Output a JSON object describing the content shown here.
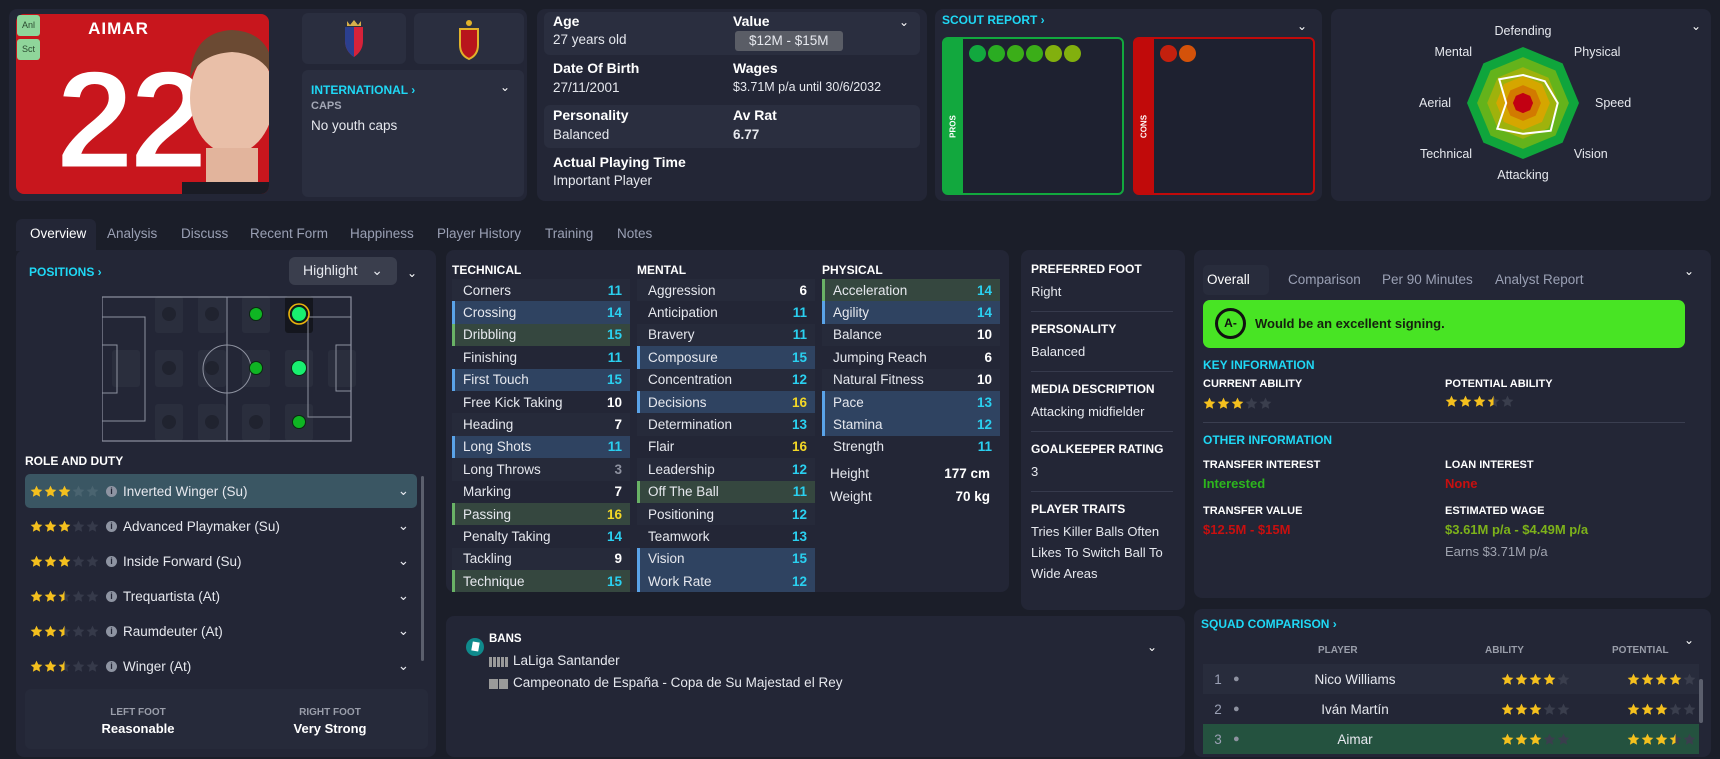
{
  "player": {
    "name": "AIMAR",
    "number": "22",
    "badges": [
      "Anl",
      "Sct"
    ],
    "shirt_color": "#c8161d"
  },
  "international": {
    "title": "INTERNATIONAL",
    "caps_label": "CAPS",
    "caps_value": "No youth caps"
  },
  "info": {
    "age_label": "Age",
    "age": "27 years old",
    "value_label": "Value",
    "value": "$12M - $15M",
    "dob_label": "Date Of Birth",
    "dob": "27/11/2001",
    "wages_label": "Wages",
    "wages": "$3.71M p/a until 30/6/2032",
    "personality_label": "Personality",
    "personality": "Balanced",
    "avrat_label": "Av Rat",
    "avrat": "6.77",
    "playing_time_label": "Actual Playing Time",
    "playing_time": "Important Player"
  },
  "scout": {
    "title": "SCOUT REPORT",
    "pros_label": "PROS",
    "cons_label": "CONS",
    "pros_icons": [
      "flask-icon",
      "target-icon",
      "tactics-icon",
      "handshake-icon",
      "brain-icon",
      "chain-icon"
    ],
    "cons_icons": [
      "mask-icon",
      "flag-icon"
    ],
    "pros_color": "#12a83e",
    "cons_color": "#c10a0a"
  },
  "radar": {
    "axes": [
      "Defending",
      "Physical",
      "Speed",
      "Vision",
      "Attacking",
      "Technical",
      "Aerial",
      "Mental"
    ],
    "player_values": [
      0.5,
      0.55,
      0.62,
      0.7,
      0.55,
      0.65,
      0.3,
      0.6
    ],
    "ring_colors": [
      "#0fa53c",
      "#64b31b",
      "#9fb20c",
      "#d5a600",
      "#d27a00",
      "#c20012"
    ]
  },
  "tabs": [
    "Overview",
    "Analysis",
    "Discuss",
    "Recent Form",
    "Happiness",
    "Player History",
    "Training",
    "Notes"
  ],
  "positions": {
    "title": "POSITIONS",
    "highlight": "Highlight",
    "role_title": "ROLE AND DUTY",
    "roles": [
      {
        "name": "Inverted Winger (Su)",
        "stars": 3
      },
      {
        "name": "Advanced Playmaker (Su)",
        "stars": 3
      },
      {
        "name": "Inside Forward (Su)",
        "stars": 3
      },
      {
        "name": "Trequartista (At)",
        "stars": 2.5
      },
      {
        "name": "Raumdeuter (At)",
        "stars": 2.5
      },
      {
        "name": "Winger (At)",
        "stars": 2.5
      }
    ],
    "left_foot_label": "LEFT FOOT",
    "left_foot": "Reasonable",
    "right_foot_label": "RIGHT FOOT",
    "right_foot": "Very Strong"
  },
  "attributes": {
    "technical": {
      "title": "TECHNICAL",
      "rows": [
        {
          "name": "Corners",
          "v": 11,
          "h": ""
        },
        {
          "name": "Crossing",
          "v": 14,
          "h": "b"
        },
        {
          "name": "Dribbling",
          "v": 15,
          "h": "g"
        },
        {
          "name": "Finishing",
          "v": 11,
          "h": ""
        },
        {
          "name": "First Touch",
          "v": 15,
          "h": "b"
        },
        {
          "name": "Free Kick Taking",
          "v": 10,
          "h": ""
        },
        {
          "name": "Heading",
          "v": 7,
          "h": ""
        },
        {
          "name": "Long Shots",
          "v": 11,
          "h": "b"
        },
        {
          "name": "Long Throws",
          "v": 3,
          "h": ""
        },
        {
          "name": "Marking",
          "v": 7,
          "h": ""
        },
        {
          "name": "Passing",
          "v": 16,
          "h": "g"
        },
        {
          "name": "Penalty Taking",
          "v": 14,
          "h": ""
        },
        {
          "name": "Tackling",
          "v": 9,
          "h": ""
        },
        {
          "name": "Technique",
          "v": 15,
          "h": "g"
        }
      ]
    },
    "mental": {
      "title": "MENTAL",
      "rows": [
        {
          "name": "Aggression",
          "v": 6,
          "h": ""
        },
        {
          "name": "Anticipation",
          "v": 11,
          "h": ""
        },
        {
          "name": "Bravery",
          "v": 11,
          "h": ""
        },
        {
          "name": "Composure",
          "v": 15,
          "h": "b"
        },
        {
          "name": "Concentration",
          "v": 12,
          "h": ""
        },
        {
          "name": "Decisions",
          "v": 16,
          "h": "b"
        },
        {
          "name": "Determination",
          "v": 13,
          "h": ""
        },
        {
          "name": "Flair",
          "v": 16,
          "h": ""
        },
        {
          "name": "Leadership",
          "v": 12,
          "h": ""
        },
        {
          "name": "Off The Ball",
          "v": 11,
          "h": "g"
        },
        {
          "name": "Positioning",
          "v": 12,
          "h": ""
        },
        {
          "name": "Teamwork",
          "v": 13,
          "h": ""
        },
        {
          "name": "Vision",
          "v": 15,
          "h": "b"
        },
        {
          "name": "Work Rate",
          "v": 12,
          "h": "b"
        }
      ]
    },
    "physical": {
      "title": "PHYSICAL",
      "rows": [
        {
          "name": "Acceleration",
          "v": 14,
          "h": "g"
        },
        {
          "name": "Agility",
          "v": 14,
          "h": "b"
        },
        {
          "name": "Balance",
          "v": 10,
          "h": ""
        },
        {
          "name": "Jumping Reach",
          "v": 6,
          "h": ""
        },
        {
          "name": "Natural Fitness",
          "v": 10,
          "h": ""
        },
        {
          "name": "Pace",
          "v": 13,
          "h": "b"
        },
        {
          "name": "Stamina",
          "v": 12,
          "h": "b"
        },
        {
          "name": "Strength",
          "v": 11,
          "h": ""
        }
      ]
    },
    "height_label": "Height",
    "height": "177 cm",
    "weight_label": "Weight",
    "weight": "70 kg"
  },
  "details": [
    {
      "h": "PREFERRED FOOT",
      "v": [
        "Right"
      ]
    },
    {
      "h": "PERSONALITY",
      "v": [
        "Balanced"
      ]
    },
    {
      "h": "MEDIA DESCRIPTION",
      "v": [
        "Attacking midfielder"
      ]
    },
    {
      "h": "GOALKEEPER RATING",
      "v": [
        "3"
      ]
    },
    {
      "h": "PLAYER TRAITS",
      "v": [
        "Tries Killer Balls Often",
        "Likes To Switch Ball To Wide Areas"
      ]
    }
  ],
  "bans": {
    "title": "BANS",
    "items": [
      "LaLiga Santander",
      "Campeonato de España - Copa de Su Majestad el Rey"
    ]
  },
  "report": {
    "tabs": [
      "Overall",
      "Comparison",
      "Per 90 Minutes",
      "Analyst Report"
    ],
    "grade": "A-",
    "verdict": "Would be an excellent signing.",
    "verdict_color": "#48e424",
    "key_title": "KEY INFORMATION",
    "ca_label": "CURRENT ABILITY",
    "ca_stars": 3,
    "pa_label": "POTENTIAL ABILITY",
    "pa_stars": 3.5,
    "other_title": "OTHER INFORMATION",
    "ti_label": "TRANSFER INTEREST",
    "ti": "Interested",
    "li_label": "LOAN INTEREST",
    "li": "None",
    "tv_label": "TRANSFER VALUE",
    "tv": "$12.5M - $15M",
    "ew_label": "ESTIMATED WAGE",
    "ew": "$3.61M p/a - $4.49M p/a",
    "earns": "Earns $3.71M p/a"
  },
  "squad": {
    "title": "SQUAD COMPARISON",
    "cols": [
      "PLAYER",
      "ABILITY",
      "POTENTIAL"
    ],
    "rows": [
      {
        "rank": "1",
        "name": "Nico Williams",
        "ability": 4,
        "potential": 4
      },
      {
        "rank": "2",
        "name": "Iván Martín",
        "ability": 3,
        "potential": 3
      },
      {
        "rank": "3",
        "name": "Aimar",
        "ability": 3,
        "potential": 3.5
      }
    ]
  }
}
